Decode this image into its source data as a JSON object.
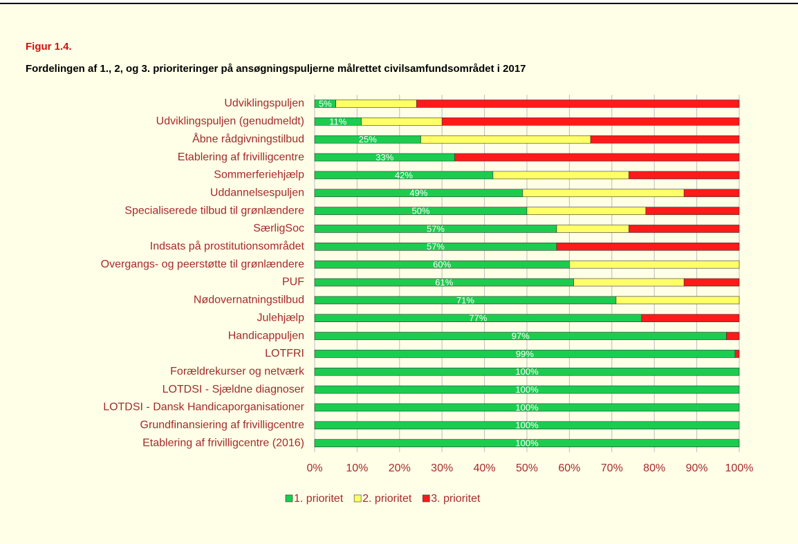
{
  "chart_data": {
    "type": "stacked-bar-horizontal",
    "label": "Figur 1.4.",
    "title": "Fordelingen af 1., 2, og 3. prioriteringer på ansøgningspuljerne målrettet civilsamfundsområdet i 2017",
    "categories": [
      "Udviklingspuljen",
      "Udviklingspuljen (genudmeldt)",
      "Åbne rådgivningstilbud",
      "Etablering af frivilligcentre",
      "Sommerferiehjælp",
      "Uddannelsespuljen",
      "Specialiserede tilbud til grønlændere",
      "SærligSoc",
      "Indsats på prostitutionsområdet",
      "Overgangs- og peerstøtte til grønlændere",
      "PUF",
      "Nødovernatningstilbud",
      "Julehjælp",
      "Handicappuljen",
      "LOTFRI",
      "Forældrekurser og netværk",
      "LOTDSI - Sjældne diagnoser",
      "LOTDSI - Dansk Handicaporganisationer",
      "Grundfinansiering af frivilligcentre",
      "Etablering af frivilligcentre (2016)"
    ],
    "series": [
      {
        "name": "1. prioritet",
        "color": "#1ccc4e",
        "values": [
          5,
          11,
          25,
          33,
          42,
          49,
          50,
          57,
          57,
          60,
          61,
          71,
          77,
          97,
          99,
          100,
          100,
          100,
          100,
          100
        ],
        "value_labels": [
          "5%",
          "11%",
          "25%",
          "33%",
          "42%",
          "49%",
          "50%",
          "57%",
          "57%",
          "60%",
          "61%",
          "71%",
          "77%",
          "97%",
          "99%",
          "100%",
          "100%",
          "100%",
          "100%",
          "100%"
        ]
      },
      {
        "name": "2. prioritet",
        "color": "#ffff66",
        "values": [
          19,
          19,
          40,
          0,
          32,
          38,
          28,
          17,
          0,
          40,
          26,
          29,
          0,
          0,
          0,
          0,
          0,
          0,
          0,
          0
        ]
      },
      {
        "name": "3. prioritet",
        "color": "#ff1a1a",
        "values": [
          76,
          70,
          35,
          67,
          26,
          13,
          22,
          26,
          43,
          0,
          13,
          0,
          23,
          3,
          1,
          0,
          0,
          0,
          0,
          0
        ]
      }
    ],
    "xlim": [
      0,
      100
    ],
    "xticks": [
      {
        "value": 0,
        "label": "0%"
      },
      {
        "value": 10,
        "label": "10%"
      },
      {
        "value": 20,
        "label": "20%"
      },
      {
        "value": 30,
        "label": "30%"
      },
      {
        "value": 40,
        "label": "40%"
      },
      {
        "value": 50,
        "label": "50%"
      },
      {
        "value": 60,
        "label": "60%"
      },
      {
        "value": 70,
        "label": "70%"
      },
      {
        "value": 80,
        "label": "80%"
      },
      {
        "value": 90,
        "label": "90%"
      },
      {
        "value": 100,
        "label": "100%"
      }
    ],
    "grid": true,
    "legend": "bottom"
  }
}
